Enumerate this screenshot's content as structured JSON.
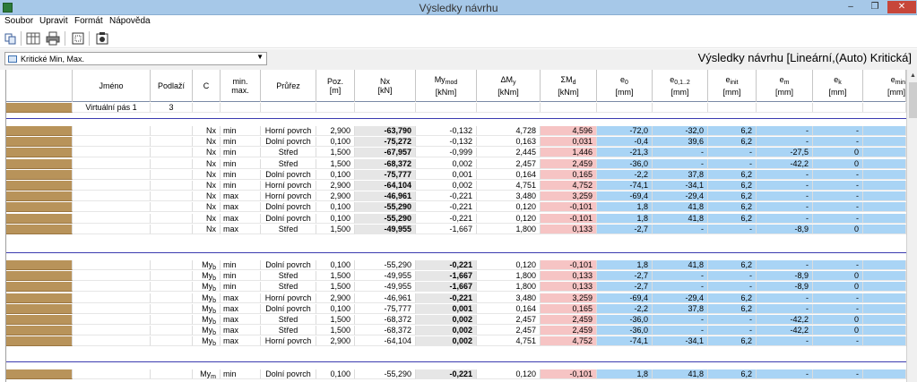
{
  "window": {
    "title": "Výsledky návrhu",
    "min": "–",
    "max": "❐",
    "close": "✕"
  },
  "menu": [
    "Soubor",
    "Upravit",
    "Formát",
    "Nápověda"
  ],
  "toolbar": {
    "icons": [
      "copy-icon",
      "columns-icon",
      "print-icon",
      "settings-icon",
      "picture-icon"
    ]
  },
  "filter": {
    "selected": "Kritické Min, Max.",
    "arrow": "▼"
  },
  "results_title": "Výsledky návrhu [Lineární,(Auto) Kritická]",
  "headers": {
    "jmeno": "Jméno",
    "podlazi": "Podlaží",
    "c": "C",
    "minmax1": "min.",
    "minmax2": "max.",
    "prurez": "Průřez",
    "poz1": "Poz.",
    "poz2": "[m]",
    "nx1": "Nx",
    "nx2": "[kN]",
    "mymod1": "My",
    "mymod_sub": "mod",
    "mymod2": "[kNm]",
    "dmy1": "ΔM",
    "dmy_sub": "y",
    "dmy2": "[kNm]",
    "smd1": "ΣM",
    "smd_sub": "d",
    "smd2": "[kNm]",
    "e0_1": "e",
    "e0_sub": "0",
    "e0_2": "[mm]",
    "e012_1": "e",
    "e012_sub": "0,1..2",
    "e012_2": "[mm]",
    "einit_1": "e",
    "einit_sub": "init",
    "einit_2": "[mm]",
    "em_1": "e",
    "em_sub": "m",
    "em_2": "[mm]",
    "ek_1": "e",
    "ek_sub": "k",
    "ek_2": "[mm]",
    "emin_1": "e",
    "emin_sub": "min",
    "emin_2": "[mm]"
  },
  "name_row": {
    "jmeno": "Virtuální pás 1",
    "podlazi": "3"
  },
  "group1_rows": [
    {
      "c": "Nx",
      "csub": "",
      "mm": "min",
      "prurez": "Horní povrch",
      "poz": "2,900",
      "nx": "-63,790",
      "mymod": "-0,132",
      "dmy": "4,728",
      "smd": "4,596",
      "e0": "-72,0",
      "e012": "-32,0",
      "einit": "6,2",
      "em": "-",
      "ek": "-"
    },
    {
      "c": "Nx",
      "csub": "",
      "mm": "min",
      "prurez": "Dolní povrch",
      "poz": "0,100",
      "nx": "-75,272",
      "mymod": "-0,132",
      "dmy": "0,163",
      "smd": "0,031",
      "e0": "-0,4",
      "e012": "39,6",
      "einit": "6,2",
      "em": "-",
      "ek": "-"
    },
    {
      "c": "Nx",
      "csub": "",
      "mm": "min",
      "prurez": "Střed",
      "poz": "1,500",
      "nx": "-67,957",
      "mymod": "-0,999",
      "dmy": "2,445",
      "smd": "1,446",
      "e0": "-21,3",
      "e012": "-",
      "einit": "-",
      "em": "-27,5",
      "ek": "0"
    },
    {
      "c": "Nx",
      "csub": "",
      "mm": "min",
      "prurez": "Střed",
      "poz": "1,500",
      "nx": "-68,372",
      "mymod": "0,002",
      "dmy": "2,457",
      "smd": "2,459",
      "e0": "-36,0",
      "e012": "-",
      "einit": "-",
      "em": "-42,2",
      "ek": "0"
    },
    {
      "c": "Nx",
      "csub": "",
      "mm": "min",
      "prurez": "Dolní povrch",
      "poz": "0,100",
      "nx": "-75,777",
      "mymod": "0,001",
      "dmy": "0,164",
      "smd": "0,165",
      "e0": "-2,2",
      "e012": "37,8",
      "einit": "6,2",
      "em": "-",
      "ek": "-"
    },
    {
      "c": "Nx",
      "csub": "",
      "mm": "min",
      "prurez": "Horní povrch",
      "poz": "2,900",
      "nx": "-64,104",
      "mymod": "0,002",
      "dmy": "4,751",
      "smd": "4,752",
      "e0": "-74,1",
      "e012": "-34,1",
      "einit": "6,2",
      "em": "-",
      "ek": "-"
    },
    {
      "c": "Nx",
      "csub": "",
      "mm": "max",
      "prurez": "Horní povrch",
      "poz": "2,900",
      "nx": "-46,961",
      "mymod": "-0,221",
      "dmy": "3,480",
      "smd": "3,259",
      "e0": "-69,4",
      "e012": "-29,4",
      "einit": "6,2",
      "em": "-",
      "ek": "-"
    },
    {
      "c": "Nx",
      "csub": "",
      "mm": "max",
      "prurez": "Dolní povrch",
      "poz": "0,100",
      "nx": "-55,290",
      "mymod": "-0,221",
      "dmy": "0,120",
      "smd": "-0,101",
      "e0": "1,8",
      "e012": "41,8",
      "einit": "6,2",
      "em": "-",
      "ek": "-"
    },
    {
      "c": "Nx",
      "csub": "",
      "mm": "max",
      "prurez": "Dolní povrch",
      "poz": "0,100",
      "nx": "-55,290",
      "mymod": "-0,221",
      "dmy": "0,120",
      "smd": "-0,101",
      "e0": "1,8",
      "e012": "41,8",
      "einit": "6,2",
      "em": "-",
      "ek": "-"
    },
    {
      "c": "Nx",
      "csub": "",
      "mm": "max",
      "prurez": "Střed",
      "poz": "1,500",
      "nx": "-49,955",
      "mymod": "-1,667",
      "dmy": "1,800",
      "smd": "0,133",
      "e0": "-2,7",
      "e012": "-",
      "einit": "-",
      "em": "-8,9",
      "ek": "0"
    }
  ],
  "group2_rows": [
    {
      "c": "My",
      "csub": "b",
      "mm": "min",
      "prurez": "Dolní povrch",
      "poz": "0,100",
      "nx": "-55,290",
      "mymod": "-0,221",
      "dmy": "0,120",
      "smd": "-0,101",
      "e0": "1,8",
      "e012": "41,8",
      "einit": "6,2",
      "em": "-",
      "ek": "-"
    },
    {
      "c": "My",
      "csub": "b",
      "mm": "min",
      "prurez": "Střed",
      "poz": "1,500",
      "nx": "-49,955",
      "mymod": "-1,667",
      "dmy": "1,800",
      "smd": "0,133",
      "e0": "-2,7",
      "e012": "-",
      "einit": "-",
      "em": "-8,9",
      "ek": "0"
    },
    {
      "c": "My",
      "csub": "b",
      "mm": "min",
      "prurez": "Střed",
      "poz": "1,500",
      "nx": "-49,955",
      "mymod": "-1,667",
      "dmy": "1,800",
      "smd": "0,133",
      "e0": "-2,7",
      "e012": "-",
      "einit": "-",
      "em": "-8,9",
      "ek": "0"
    },
    {
      "c": "My",
      "csub": "b",
      "mm": "max",
      "prurez": "Horní povrch",
      "poz": "2,900",
      "nx": "-46,961",
      "mymod": "-0,221",
      "dmy": "3,480",
      "smd": "3,259",
      "e0": "-69,4",
      "e012": "-29,4",
      "einit": "6,2",
      "em": "-",
      "ek": "-"
    },
    {
      "c": "My",
      "csub": "b",
      "mm": "max",
      "prurez": "Dolní povrch",
      "poz": "0,100",
      "nx": "-75,777",
      "mymod": "0,001",
      "dmy": "0,164",
      "smd": "0,165",
      "e0": "-2,2",
      "e012": "37,8",
      "einit": "6,2",
      "em": "-",
      "ek": "-"
    },
    {
      "c": "My",
      "csub": "b",
      "mm": "max",
      "prurez": "Střed",
      "poz": "1,500",
      "nx": "-68,372",
      "mymod": "0,002",
      "dmy": "2,457",
      "smd": "2,459",
      "e0": "-36,0",
      "e012": "-",
      "einit": "-",
      "em": "-42,2",
      "ek": "0"
    },
    {
      "c": "My",
      "csub": "b",
      "mm": "max",
      "prurez": "Střed",
      "poz": "1,500",
      "nx": "-68,372",
      "mymod": "0,002",
      "dmy": "2,457",
      "smd": "2,459",
      "e0": "-36,0",
      "e012": "-",
      "einit": "-",
      "em": "-42,2",
      "ek": "0"
    },
    {
      "c": "My",
      "csub": "b",
      "mm": "max",
      "prurez": "Horní povrch",
      "poz": "2,900",
      "nx": "-64,104",
      "mymod": "0,002",
      "dmy": "4,751",
      "smd": "4,752",
      "e0": "-74,1",
      "e012": "-34,1",
      "einit": "6,2",
      "em": "-",
      "ek": "-"
    }
  ],
  "group3_rows": [
    {
      "c": "My",
      "csub": "m",
      "mm": "min",
      "prurez": "Dolní povrch",
      "poz": "0,100",
      "nx": "-55,290",
      "mymod": "-0,221",
      "dmy": "0,120",
      "smd": "-0,101",
      "e0": "1,8",
      "e012": "41,8",
      "einit": "6,2",
      "em": "-",
      "ek": "-"
    }
  ],
  "colors": {
    "brown": "#b8935a",
    "pink": "#f6c4c4",
    "blue": "#a9d4f5",
    "highlight": "#e6e6e6"
  }
}
